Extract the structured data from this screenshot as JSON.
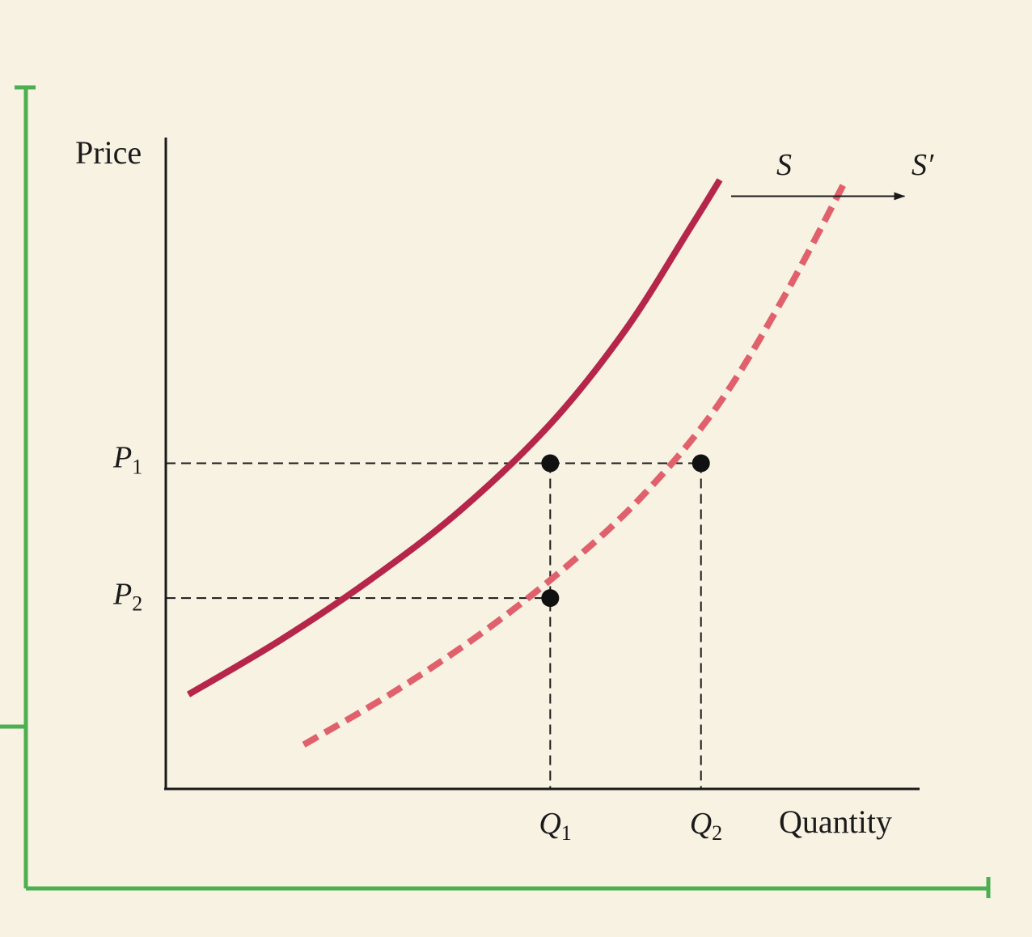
{
  "colors": {
    "background": "#F7F2E2",
    "frame": "#4CAF50",
    "axis": "#1a1a1a",
    "supply_S": "#B5264A",
    "supply_S_prime": "#E0606C",
    "point": "#111111"
  },
  "chart_data": {
    "type": "line",
    "xlabel": "Quantity",
    "ylabel": "Price",
    "xlim": [
      0,
      10
    ],
    "ylim": [
      0,
      10
    ],
    "grid": false,
    "series": [
      {
        "name": "S",
        "style": "solid",
        "x": [
          0.3,
          1.5,
          2.7,
          3.9,
          5.1,
          6.1,
          6.95,
          7.35
        ],
        "y": [
          1.45,
          2.27,
          3.2,
          4.27,
          5.6,
          7.05,
          8.6,
          9.35
        ]
      },
      {
        "name": "S′",
        "style": "dashed",
        "x": [
          1.83,
          3.0,
          4.2,
          5.3,
          6.3,
          7.3,
          8.2,
          9.0
        ],
        "y": [
          0.68,
          1.47,
          2.4,
          3.4,
          4.47,
          5.85,
          7.55,
          9.3
        ]
      }
    ],
    "ticks": {
      "x": [
        {
          "label": "Q",
          "sub": "1",
          "value": 5.1
        },
        {
          "label": "Q",
          "sub": "2",
          "value": 7.1
        }
      ],
      "y": [
        {
          "label": "P",
          "sub": "1",
          "value": 5.0
        },
        {
          "label": "P",
          "sub": "2",
          "value": 2.9
        }
      ]
    },
    "points": [
      {
        "x": 5.1,
        "y": 5.0
      },
      {
        "x": 7.1,
        "y": 5.0
      },
      {
        "x": 5.1,
        "y": 2.93
      }
    ],
    "shift_arrow": {
      "from": [
        7.5,
        9.1
      ],
      "to": [
        9.8,
        9.1
      ]
    }
  }
}
